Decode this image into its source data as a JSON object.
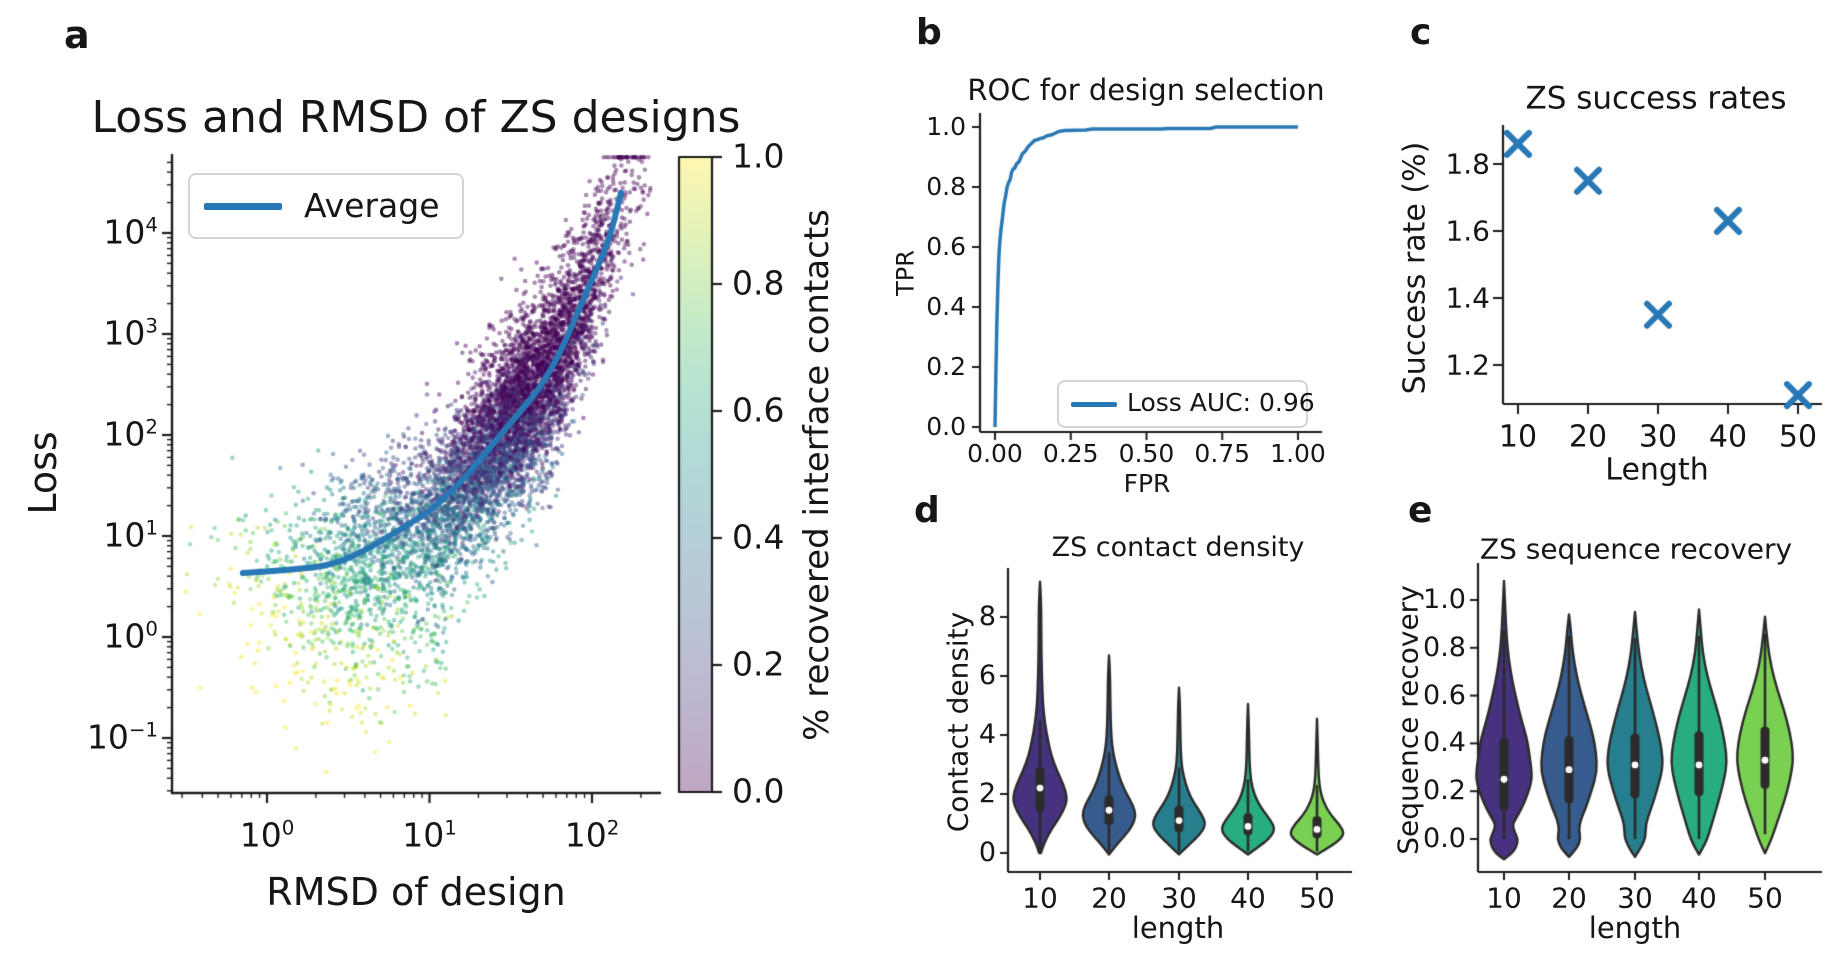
{
  "figure": {
    "background": "#ffffff",
    "accent_blue": "#2878b5",
    "panel_letters": {
      "a": "a",
      "b": "b",
      "c": "c",
      "d": "d",
      "e": "e"
    }
  },
  "chart_data": [
    {
      "panel": "a",
      "type": "scatter",
      "title": "Loss and RMSD of ZS designs",
      "xlabel": "RMSD of design",
      "ylabel": "Loss",
      "xscale": "log",
      "yscale": "log",
      "xlim": [
        0.27,
        255
      ],
      "ylim": [
        0.03,
        59000
      ],
      "xticks": [
        {
          "base": "10",
          "exp": "0"
        },
        {
          "base": "10",
          "exp": "1"
        },
        {
          "base": "10",
          "exp": "2"
        }
      ],
      "yticks": [
        {
          "base": "10",
          "exp": "4"
        },
        {
          "base": "10",
          "exp": "3"
        },
        {
          "base": "10",
          "exp": "2"
        },
        {
          "base": "10",
          "exp": "1"
        },
        {
          "base": "10",
          "exp": "0"
        },
        {
          "base": "10",
          "exp": "−1"
        }
      ],
      "legend_label": "Average",
      "line_color": "#2878b5",
      "average_line": [
        [
          0.71,
          4.3
        ],
        [
          1.41,
          4.6
        ],
        [
          2.82,
          5.3
        ],
        [
          5.75,
          10
        ],
        [
          12.6,
          22.4
        ],
        [
          31.6,
          132
        ],
        [
          56.2,
          400
        ],
        [
          100,
          3500
        ],
        [
          126,
          7900
        ],
        [
          151,
          25000
        ]
      ],
      "scatter_generator": {
        "seed": 12345,
        "n": 7000,
        "alpha": 0.45,
        "radius": 2.3,
        "cmap": "viridis",
        "mixture_log_rmsd": [
          {
            "weight": 0.72,
            "mean": 1.58,
            "sd": 0.3
          },
          {
            "weight": 0.28,
            "mean": 0.78,
            "sd": 0.42
          }
        ],
        "log_loss_noise_sd": 0.43,
        "low_tail_fraction": 0.25,
        "low_tail_max_decades": 1.3,
        "color_model": {
          "base": 0.78,
          "t_coef": -0.47,
          "resid_coef": 0.28,
          "noise_sd": 0.12
        }
      },
      "colorbar": {
        "label": "% recovered interface contacts",
        "ticks": [
          "1.0",
          "0.8",
          "0.6",
          "0.4",
          "0.2",
          "0.0"
        ],
        "cmap": "viridis",
        "alpha": 0.35
      }
    },
    {
      "panel": "b",
      "type": "line",
      "title": "ROC for design selection",
      "xlabel": "FPR",
      "ylabel": "TPR",
      "xticks": [
        "0.00",
        "0.25",
        "0.50",
        "0.75",
        "1.00"
      ],
      "yticks": [
        "0.0",
        "0.2",
        "0.4",
        "0.6",
        "0.8",
        "1.0"
      ],
      "legend_label": "Loss AUC: 0.96",
      "auc": 0.96,
      "line_color": "#2878b5",
      "roc_curve": [
        [
          0,
          0
        ],
        [
          0.003,
          0.18
        ],
        [
          0.006,
          0.34
        ],
        [
          0.01,
          0.49
        ],
        [
          0.013,
          0.57
        ],
        [
          0.016,
          0.62
        ],
        [
          0.02,
          0.66
        ],
        [
          0.025,
          0.7
        ],
        [
          0.03,
          0.745
        ],
        [
          0.035,
          0.77
        ],
        [
          0.04,
          0.8
        ],
        [
          0.045,
          0.815
        ],
        [
          0.05,
          0.825
        ],
        [
          0.055,
          0.85
        ],
        [
          0.06,
          0.86
        ],
        [
          0.065,
          0.862
        ],
        [
          0.07,
          0.875
        ],
        [
          0.08,
          0.886
        ],
        [
          0.09,
          0.91
        ],
        [
          0.1,
          0.92
        ],
        [
          0.11,
          0.935
        ],
        [
          0.12,
          0.945
        ],
        [
          0.13,
          0.955
        ],
        [
          0.14,
          0.958
        ],
        [
          0.15,
          0.962
        ],
        [
          0.16,
          0.964
        ],
        [
          0.17,
          0.97
        ],
        [
          0.19,
          0.975
        ],
        [
          0.21,
          0.985
        ],
        [
          0.23,
          0.988
        ],
        [
          0.3,
          0.99
        ],
        [
          0.32,
          0.993
        ],
        [
          0.55,
          0.993
        ],
        [
          0.57,
          0.995
        ],
        [
          0.71,
          0.995
        ],
        [
          0.73,
          1.0
        ],
        [
          1.0,
          1.0
        ]
      ]
    },
    {
      "panel": "c",
      "type": "scatter",
      "title": "ZS success rates",
      "xlabel": "Length",
      "ylabel": "Success rate (%)",
      "marker": "x",
      "marker_color": "#2878b5",
      "xticks": [
        "10",
        "20",
        "30",
        "40",
        "50"
      ],
      "yticks": [
        "1.2",
        "1.4",
        "1.6",
        "1.8"
      ],
      "lengths": [
        10,
        20,
        30,
        40,
        50
      ],
      "success_rates": [
        1.86,
        1.75,
        1.35,
        1.63,
        1.11
      ]
    },
    {
      "panel": "d",
      "type": "violin",
      "title": "ZS contact density",
      "xlabel": "length",
      "ylabel": "Contact density",
      "xticks": [
        "10",
        "20",
        "30",
        "40",
        "50"
      ],
      "yticks": [
        "0",
        "2",
        "4",
        "6",
        "8"
      ],
      "categories": [
        10,
        20,
        30,
        40,
        50
      ],
      "colors": [
        "#46327e",
        "#365c8d",
        "#277f8e",
        "#27ad81",
        "#7ad151"
      ],
      "violins": [
        {
          "length": 10,
          "median": 2.2,
          "q1": 1.4,
          "q3": 2.9,
          "whisker_low": 0.1,
          "whisker_high": 4.5,
          "min": 0.0,
          "max": 9.2,
          "profile": [
            [
              0,
              0.03
            ],
            [
              0.4,
              0.18
            ],
            [
              0.8,
              0.42
            ],
            [
              1.2,
              0.72
            ],
            [
              1.6,
              0.95
            ],
            [
              1.9,
              1.0
            ],
            [
              2.3,
              0.88
            ],
            [
              2.8,
              0.62
            ],
            [
              3.3,
              0.42
            ],
            [
              3.8,
              0.3
            ],
            [
              4.3,
              0.2
            ],
            [
              5,
              0.11
            ],
            [
              6,
              0.07
            ],
            [
              7,
              0.05
            ],
            [
              8,
              0.045
            ],
            [
              8.6,
              0.035
            ],
            [
              9.2,
              0
            ]
          ]
        },
        {
          "length": 20,
          "median": 1.45,
          "q1": 0.95,
          "q3": 1.95,
          "whisker_low": 0.05,
          "whisker_high": 3.4,
          "min": -0.05,
          "max": 6.7,
          "profile": [
            [
              -0.05,
              0
            ],
            [
              0.3,
              0.3
            ],
            [
              0.6,
              0.6
            ],
            [
              0.9,
              0.85
            ],
            [
              1.25,
              1.0
            ],
            [
              1.6,
              0.9
            ],
            [
              2,
              0.65
            ],
            [
              2.4,
              0.45
            ],
            [
              2.9,
              0.28
            ],
            [
              3.4,
              0.15
            ],
            [
              4,
              0.08
            ],
            [
              5,
              0.05
            ],
            [
              6,
              0.04
            ],
            [
              6.7,
              0
            ]
          ]
        },
        {
          "length": 30,
          "median": 1.1,
          "q1": 0.7,
          "q3": 1.6,
          "whisker_low": 0.05,
          "whisker_high": 2.9,
          "min": -0.05,
          "max": 5.6,
          "profile": [
            [
              -0.05,
              0
            ],
            [
              0.3,
              0.4
            ],
            [
              0.6,
              0.75
            ],
            [
              0.95,
              1.0
            ],
            [
              1.3,
              0.85
            ],
            [
              1.7,
              0.55
            ],
            [
              2.1,
              0.33
            ],
            [
              2.6,
              0.17
            ],
            [
              3.1,
              0.08
            ],
            [
              4,
              0.05
            ],
            [
              5,
              0.035
            ],
            [
              5.6,
              0
            ]
          ]
        },
        {
          "length": 40,
          "median": 0.9,
          "q1": 0.6,
          "q3": 1.35,
          "whisker_low": 0.05,
          "whisker_high": 2.5,
          "min": -0.05,
          "max": 5.05,
          "profile": [
            [
              -0.05,
              0
            ],
            [
              0.25,
              0.45
            ],
            [
              0.5,
              0.8
            ],
            [
              0.8,
              1.0
            ],
            [
              1.1,
              0.85
            ],
            [
              1.45,
              0.55
            ],
            [
              1.8,
              0.32
            ],
            [
              2.2,
              0.16
            ],
            [
              2.7,
              0.08
            ],
            [
              3.3,
              0.05
            ],
            [
              4.2,
              0.035
            ],
            [
              5.05,
              0
            ]
          ]
        },
        {
          "length": 50,
          "median": 0.8,
          "q1": 0.5,
          "q3": 1.25,
          "whisker_low": 0.05,
          "whisker_high": 2.3,
          "min": -0.05,
          "max": 4.55,
          "profile": [
            [
              -0.05,
              0
            ],
            [
              0.25,
              0.55
            ],
            [
              0.5,
              0.9
            ],
            [
              0.7,
              1.0
            ],
            [
              1.0,
              0.8
            ],
            [
              1.3,
              0.5
            ],
            [
              1.7,
              0.25
            ],
            [
              2.1,
              0.12
            ],
            [
              2.6,
              0.06
            ],
            [
              3.3,
              0.04
            ],
            [
              4.55,
              0
            ]
          ]
        }
      ]
    },
    {
      "panel": "e",
      "type": "violin",
      "title": "ZS sequence recovery",
      "xlabel": "length",
      "ylabel": "Sequence recovery",
      "xticks": [
        "10",
        "20",
        "30",
        "40",
        "50"
      ],
      "yticks": [
        "0.0",
        "0.2",
        "0.4",
        "0.6",
        "0.8",
        "1.0"
      ],
      "categories": [
        10,
        20,
        30,
        40,
        50
      ],
      "colors": [
        "#46327e",
        "#365c8d",
        "#277f8e",
        "#27ad81",
        "#7ad151"
      ],
      "violins": [
        {
          "length": 10,
          "median": 0.25,
          "q1": 0.12,
          "q3": 0.42,
          "whisker_low": 0.0,
          "whisker_high": 0.87,
          "min": -0.085,
          "max": 1.08,
          "profile": [
            [
              -0.085,
              0
            ],
            [
              -0.06,
              0.3
            ],
            [
              -0.03,
              0.45
            ],
            [
              0.0,
              0.5
            ],
            [
              0.03,
              0.38
            ],
            [
              0.06,
              0.3
            ],
            [
              0.1,
              0.5
            ],
            [
              0.15,
              0.72
            ],
            [
              0.2,
              0.88
            ],
            [
              0.25,
              1.0
            ],
            [
              0.3,
              0.97
            ],
            [
              0.36,
              0.9
            ],
            [
              0.42,
              0.82
            ],
            [
              0.5,
              0.62
            ],
            [
              0.58,
              0.45
            ],
            [
              0.66,
              0.3
            ],
            [
              0.75,
              0.17
            ],
            [
              0.85,
              0.09
            ],
            [
              0.95,
              0.05
            ],
            [
              1.08,
              0
            ]
          ]
        },
        {
          "length": 20,
          "median": 0.29,
          "q1": 0.15,
          "q3": 0.43,
          "whisker_low": 0.0,
          "whisker_high": 0.85,
          "min": -0.075,
          "max": 0.94,
          "profile": [
            [
              -0.075,
              0
            ],
            [
              -0.04,
              0.28
            ],
            [
              0.0,
              0.42
            ],
            [
              0.04,
              0.35
            ],
            [
              0.08,
              0.42
            ],
            [
              0.13,
              0.6
            ],
            [
              0.2,
              0.8
            ],
            [
              0.28,
              1.0
            ],
            [
              0.36,
              0.97
            ],
            [
              0.44,
              0.85
            ],
            [
              0.52,
              0.65
            ],
            [
              0.6,
              0.45
            ],
            [
              0.68,
              0.28
            ],
            [
              0.78,
              0.13
            ],
            [
              0.88,
              0.06
            ],
            [
              0.94,
              0
            ]
          ]
        },
        {
          "length": 30,
          "median": 0.31,
          "q1": 0.17,
          "q3": 0.44,
          "whisker_low": 0.0,
          "whisker_high": 0.84,
          "min": -0.075,
          "max": 0.95,
          "profile": [
            [
              -0.075,
              0
            ],
            [
              -0.03,
              0.25
            ],
            [
              0.01,
              0.38
            ],
            [
              0.06,
              0.38
            ],
            [
              0.12,
              0.55
            ],
            [
              0.2,
              0.78
            ],
            [
              0.3,
              1.0
            ],
            [
              0.38,
              0.95
            ],
            [
              0.46,
              0.8
            ],
            [
              0.55,
              0.6
            ],
            [
              0.63,
              0.4
            ],
            [
              0.72,
              0.22
            ],
            [
              0.82,
              0.1
            ],
            [
              0.95,
              0
            ]
          ]
        },
        {
          "length": 40,
          "median": 0.31,
          "q1": 0.18,
          "q3": 0.45,
          "whisker_low": 0.0,
          "whisker_high": 0.85,
          "min": -0.065,
          "max": 0.96,
          "profile": [
            [
              -0.065,
              0
            ],
            [
              -0.02,
              0.22
            ],
            [
              0.02,
              0.35
            ],
            [
              0.08,
              0.5
            ],
            [
              0.15,
              0.68
            ],
            [
              0.25,
              0.9
            ],
            [
              0.32,
              1.0
            ],
            [
              0.4,
              0.93
            ],
            [
              0.5,
              0.75
            ],
            [
              0.6,
              0.5
            ],
            [
              0.68,
              0.3
            ],
            [
              0.78,
              0.13
            ],
            [
              0.88,
              0.06
            ],
            [
              0.96,
              0
            ]
          ]
        },
        {
          "length": 50,
          "median": 0.33,
          "q1": 0.21,
          "q3": 0.47,
          "whisker_low": 0.02,
          "whisker_high": 0.86,
          "min": -0.06,
          "max": 0.93,
          "profile": [
            [
              -0.06,
              0
            ],
            [
              -0.01,
              0.2
            ],
            [
              0.05,
              0.38
            ],
            [
              0.12,
              0.58
            ],
            [
              0.2,
              0.8
            ],
            [
              0.3,
              0.98
            ],
            [
              0.36,
              1.0
            ],
            [
              0.44,
              0.9
            ],
            [
              0.54,
              0.68
            ],
            [
              0.62,
              0.45
            ],
            [
              0.72,
              0.22
            ],
            [
              0.82,
              0.09
            ],
            [
              0.93,
              0
            ]
          ]
        }
      ]
    }
  ]
}
